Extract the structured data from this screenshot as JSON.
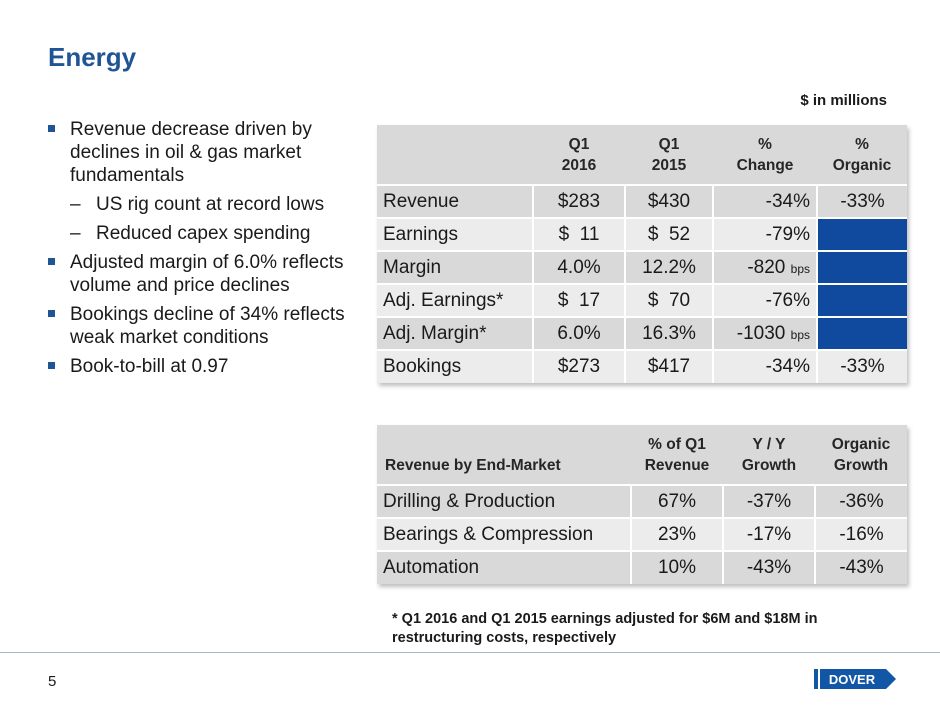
{
  "title": "Energy",
  "units_note": "$ in millions",
  "bullets": [
    {
      "level": 1,
      "text": "Revenue decrease driven by declines in oil & gas market fundamentals"
    },
    {
      "level": 2,
      "text": "US rig count at record lows"
    },
    {
      "level": 2,
      "text": "Reduced capex spending"
    },
    {
      "level": 1,
      "text": "Adjusted margin of 6.0% reflects volume and price declines"
    },
    {
      "level": 1,
      "text": "Bookings decline of 34% reflects weak market conditions"
    },
    {
      "level": 1,
      "text": "Book-to-bill at 0.97"
    }
  ],
  "table1": {
    "headers": [
      "",
      "Q1\n2016",
      "Q1\n2015",
      "%\nChange",
      "%\nOrganic"
    ],
    "rows": [
      {
        "label": "Revenue",
        "q1_2016": "$283",
        "q1_2015": "$430",
        "change": "-34%",
        "change_unit": "",
        "organic": "-33%"
      },
      {
        "label": "Earnings",
        "q1_2016": "$  11",
        "q1_2015": "$  52",
        "change": "-79%",
        "change_unit": "",
        "organic": ""
      },
      {
        "label": "Margin",
        "q1_2016": "4.0%",
        "q1_2015": "12.2%",
        "change": "-820",
        "change_unit": "bps",
        "organic": ""
      },
      {
        "label": "Adj. Earnings*",
        "q1_2016": "$  17",
        "q1_2015": "$  70",
        "change": "-76%",
        "change_unit": "",
        "organic": ""
      },
      {
        "label": "Adj. Margin*",
        "q1_2016": "6.0%",
        "q1_2015": "16.3%",
        "change": "-1030",
        "change_unit": "bps",
        "organic": ""
      },
      {
        "label": "Bookings",
        "q1_2016": "$273",
        "q1_2015": "$417",
        "change": "-34%",
        "change_unit": "",
        "organic": "-33%"
      }
    ]
  },
  "table2": {
    "headers": [
      "Revenue by End-Market",
      "% of Q1\nRevenue",
      "Y / Y\nGrowth",
      "Organic\nGrowth"
    ],
    "rows": [
      {
        "label": "Drilling & Production",
        "pct": "67%",
        "yoy": "-37%",
        "organic": "-36%"
      },
      {
        "label": "Bearings & Compression",
        "pct": "23%",
        "yoy": "-17%",
        "organic": "-16%"
      },
      {
        "label": "Automation",
        "pct": "10%",
        "yoy": "-43%",
        "organic": "-43%"
      }
    ]
  },
  "footnote": "* Q1 2016 and Q1 2015 earnings adjusted for $6M and $18M in restructuring costs, respectively",
  "page_number": "5",
  "logo_text": "DOVER",
  "colors": {
    "title": "#1f5594",
    "bullet": "#1f5594",
    "header_fill": "#d9d9d9",
    "row_light": "#ececec",
    "blank_cell": "#0f4a9e",
    "logo": "#1256a6"
  }
}
